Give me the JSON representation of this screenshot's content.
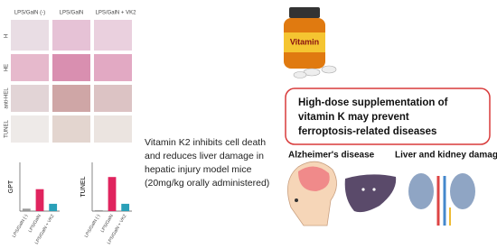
{
  "figure": {
    "column_headers": [
      "LPS/GalN (-)",
      "LPS/GalN",
      "LPS/GalN + VK2"
    ],
    "row_labels": [
      "H",
      "HE",
      "anti-HEL",
      "TUNEL"
    ]
  },
  "chart_data": [
    {
      "type": "bar",
      "y_label": "GPT",
      "categories": [
        "LPS/GalN (-)",
        "LPS/GalN",
        "LPS/GalN + VK2"
      ],
      "values": [
        0.05,
        0.45,
        0.15
      ],
      "colors": [
        "#999999",
        "#e0245e",
        "#2aa0b8"
      ],
      "ylim": [
        0,
        1
      ]
    },
    {
      "type": "bar",
      "y_label": "TUNEL",
      "categories": [
        "LPS/GalN (-)",
        "LPS/GalN",
        "LPS/GalN + VK2"
      ],
      "values": [
        0.02,
        0.7,
        0.15
      ],
      "colors": [
        "#999999",
        "#e0245e",
        "#2aa0b8"
      ],
      "ylim": [
        0,
        1
      ]
    }
  ],
  "description": [
    "Vitamin K2 inhibits cell death",
    "and reduces liver damage in",
    "hepatic injury model mice",
    "(20mg/kg  orally administered)"
  ],
  "bottle_label": "Vitamin",
  "callout": [
    "High-dose supplementation of",
    "vitamin K may  prevent",
    "ferroptosis-related diseases"
  ],
  "diseases": [
    "Alzheimer's disease",
    "Liver and kidney damages"
  ]
}
